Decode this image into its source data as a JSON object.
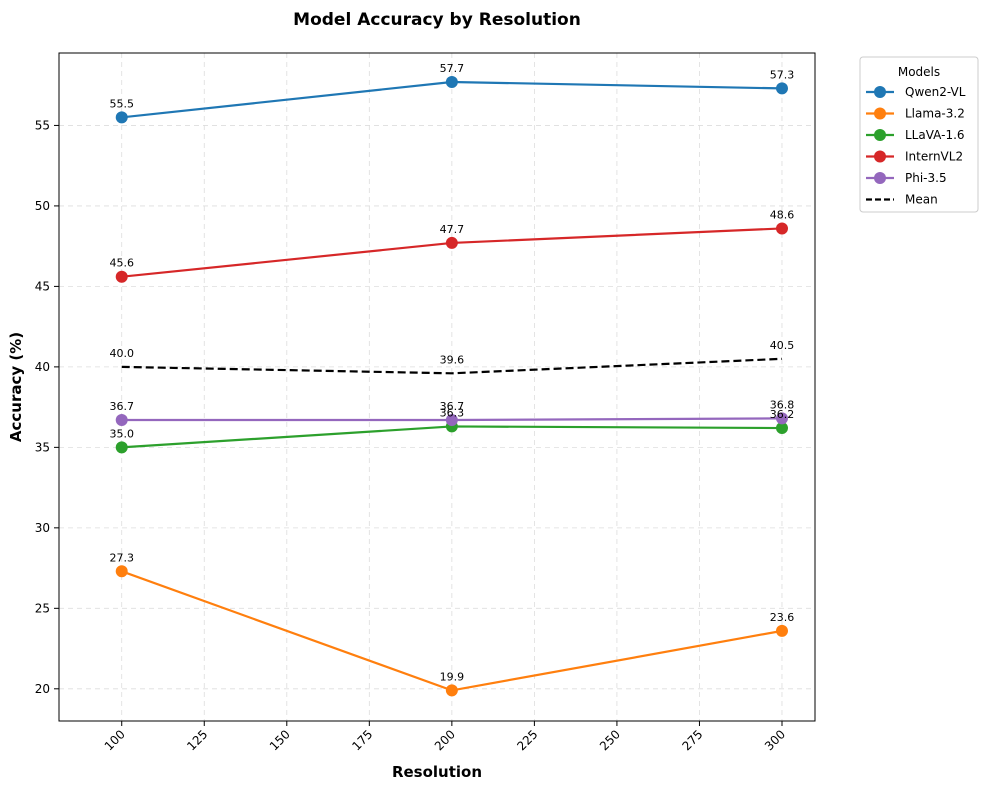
{
  "chart_data": {
    "type": "line",
    "title": "Model Accuracy by Resolution",
    "xlabel": "Resolution",
    "ylabel": "Accuracy (%)",
    "x": [
      100,
      200,
      300
    ],
    "xlim": [
      81,
      310
    ],
    "ylim": [
      18,
      59.5
    ],
    "xticks": [
      100,
      125,
      150,
      175,
      200,
      225,
      250,
      275,
      300
    ],
    "yticks": [
      20,
      25,
      30,
      35,
      40,
      45,
      50,
      55
    ],
    "grid": true,
    "legend": {
      "title": "Models",
      "placement": "outside-top-right"
    },
    "series": [
      {
        "name": "Qwen2-VL",
        "values": [
          55.5,
          57.7,
          57.3
        ],
        "color": "#1f77b4",
        "style": "solid",
        "marker": "circle"
      },
      {
        "name": "Llama-3.2",
        "values": [
          27.3,
          19.9,
          23.6
        ],
        "color": "#ff7f0e",
        "style": "solid",
        "marker": "circle"
      },
      {
        "name": "LLaVA-1.6",
        "values": [
          35.0,
          36.3,
          36.2
        ],
        "color": "#2ca02c",
        "style": "solid",
        "marker": "circle"
      },
      {
        "name": "InternVL2",
        "values": [
          45.6,
          47.7,
          48.6
        ],
        "color": "#d62728",
        "style": "solid",
        "marker": "circle"
      },
      {
        "name": "Phi-3.5",
        "values": [
          36.7,
          36.7,
          36.8
        ],
        "color": "#9467bd",
        "style": "solid",
        "marker": "circle"
      },
      {
        "name": "Mean",
        "values": [
          40.0,
          39.6,
          40.5
        ],
        "color": "#000000",
        "style": "dashed",
        "marker": "none"
      }
    ]
  }
}
